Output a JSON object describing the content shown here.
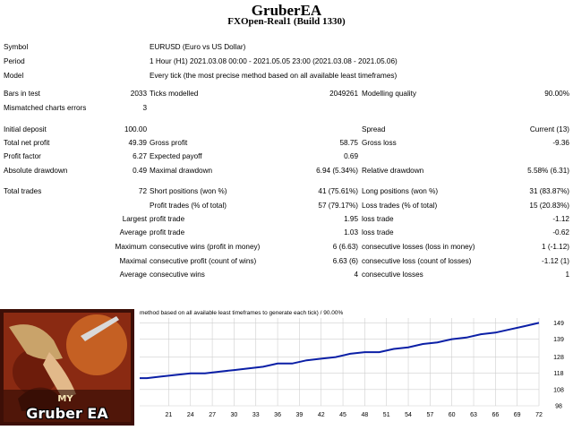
{
  "header": {
    "title": "GruberEA",
    "subtitle": "FXOpen-Real1 (Build 1330)"
  },
  "report": {
    "symbol_label": "Symbol",
    "symbol_value": "EURUSD (Euro vs US Dollar)",
    "period_label": "Period",
    "period_value": "1 Hour (H1) 2021.03.08 00:00 - 2021.05.05 23:00 (2021.03.08 - 2021.05.06)",
    "model_label": "Model",
    "model_value": "Every tick (the most precise method based on all available least timeframes)",
    "bars_label": "Bars in test",
    "bars_value": "2033",
    "ticks_label": "Ticks modelled",
    "ticks_value": "2049261",
    "quality_label": "Modelling quality",
    "quality_value": "90.00%",
    "mismatched_label": "Mismatched charts errors",
    "mismatched_value": "3",
    "deposit_label": "Initial deposit",
    "deposit_value": "100.00",
    "spread_label": "Spread",
    "spread_value": "Current (13)",
    "net_profit_label": "Total net profit",
    "net_profit_value": "49.39",
    "gross_profit_label": "Gross profit",
    "gross_profit_value": "58.75",
    "gross_loss_label": "Gross loss",
    "gross_loss_value": "-9.36",
    "profit_factor_label": "Profit factor",
    "profit_factor_value": "6.27",
    "expected_payoff_label": "Expected payoff",
    "expected_payoff_value": "0.69",
    "abs_dd_label": "Absolute drawdown",
    "abs_dd_value": "0.49",
    "max_dd_label": "Maximal drawdown",
    "max_dd_value": "6.94 (5.34%)",
    "rel_dd_label": "Relative drawdown",
    "rel_dd_value": "5.58% (6.31)",
    "total_trades_label": "Total trades",
    "total_trades_value": "72",
    "short_label": "Short positions (won %)",
    "short_value": "41 (75.61%)",
    "long_label": "Long positions (won %)",
    "long_value": "31 (83.87%)",
    "profit_trades_label": "Profit trades (% of total)",
    "profit_trades_value": "57 (79.17%)",
    "loss_trades_label": "Loss trades (% of total)",
    "loss_trades_value": "15 (20.83%)",
    "largest_label": "Largest",
    "largest_profit_label": "profit trade",
    "largest_profit_value": "1.95",
    "largest_loss_label": "loss trade",
    "largest_loss_value": "-1.12",
    "average_label": "Average",
    "average_profit_label": "profit trade",
    "average_profit_value": "1.03",
    "average_loss_label": "loss trade",
    "average_loss_value": "-0.62",
    "maximum_label": "Maximum",
    "max_cons_wins_label": "consecutive wins (profit in money)",
    "max_cons_wins_value": "6 (6.63)",
    "max_cons_losses_label": "consecutive losses (loss in money)",
    "max_cons_losses_value": "1 (-1.12)",
    "maximal_label": "Maximal",
    "maximal_cons_profit_label": "consecutive profit (count of wins)",
    "maximal_cons_profit_value": "6.63 (6)",
    "maximal_cons_loss_label": "consecutive loss (count of losses)",
    "maximal_cons_loss_value": "-1.12 (1)",
    "avg2_label": "Average",
    "avg_cons_wins_label": "consecutive wins",
    "avg_cons_wins_value": "4",
    "avg_cons_losses_label": "consecutive losses",
    "avg_cons_losses_value": "1"
  },
  "chart_caption": "method based on all available least timeframes to generate each tick) / 90.00%",
  "logo": {
    "small": "MY",
    "big": "Gruber EA"
  },
  "colors": {
    "line": "#0b1fa6",
    "grid": "#cfcfcf",
    "logo_bg": "#7a1d0e"
  },
  "chart_data": {
    "type": "line",
    "x_ticks": [
      "21",
      "24",
      "27",
      "30",
      "33",
      "36",
      "39",
      "42",
      "45",
      "48",
      "51",
      "54",
      "57",
      "60",
      "63",
      "66",
      "69",
      "72"
    ],
    "y_ticks": [
      "98",
      "108",
      "118",
      "128",
      "139",
      "149"
    ],
    "ylim": [
      98,
      152
    ],
    "x": [
      17,
      18,
      20,
      22,
      24,
      26,
      28,
      30,
      32,
      34,
      36,
      38,
      40,
      42,
      44,
      46,
      48,
      50,
      52,
      54,
      56,
      58,
      60,
      62,
      64,
      66,
      68,
      70,
      72
    ],
    "values": [
      115,
      115,
      116,
      117,
      118,
      118,
      119,
      120,
      121,
      122,
      124,
      124,
      126,
      127,
      128,
      130,
      131,
      131,
      133,
      134,
      136,
      137,
      139,
      140,
      142,
      143,
      145,
      147,
      149
    ]
  }
}
